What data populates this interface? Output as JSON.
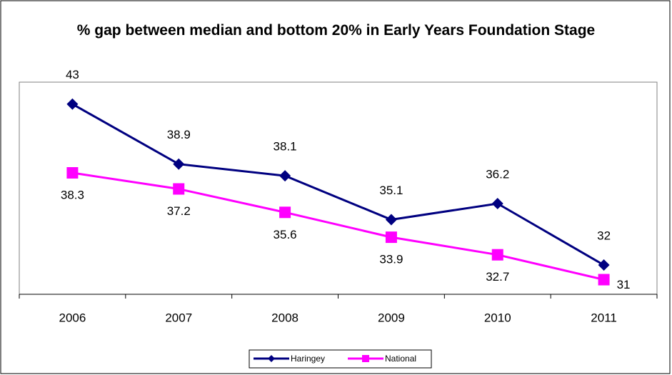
{
  "chart_data": {
    "type": "line",
    "title": "% gap between median and bottom 20% in Early Years Foundation Stage",
    "categories": [
      "2006",
      "2007",
      "2008",
      "2009",
      "2010",
      "2011"
    ],
    "series": [
      {
        "name": "Haringey",
        "color": "#000080",
        "marker": "diamond",
        "values": [
          43,
          38.9,
          38.1,
          35.1,
          36.2,
          32
        ]
      },
      {
        "name": "National",
        "color": "#ff00ff",
        "marker": "square",
        "values": [
          38.3,
          37.2,
          35.6,
          33.9,
          32.7,
          31
        ]
      }
    ],
    "ylim": [
      30,
      44.5
    ]
  }
}
